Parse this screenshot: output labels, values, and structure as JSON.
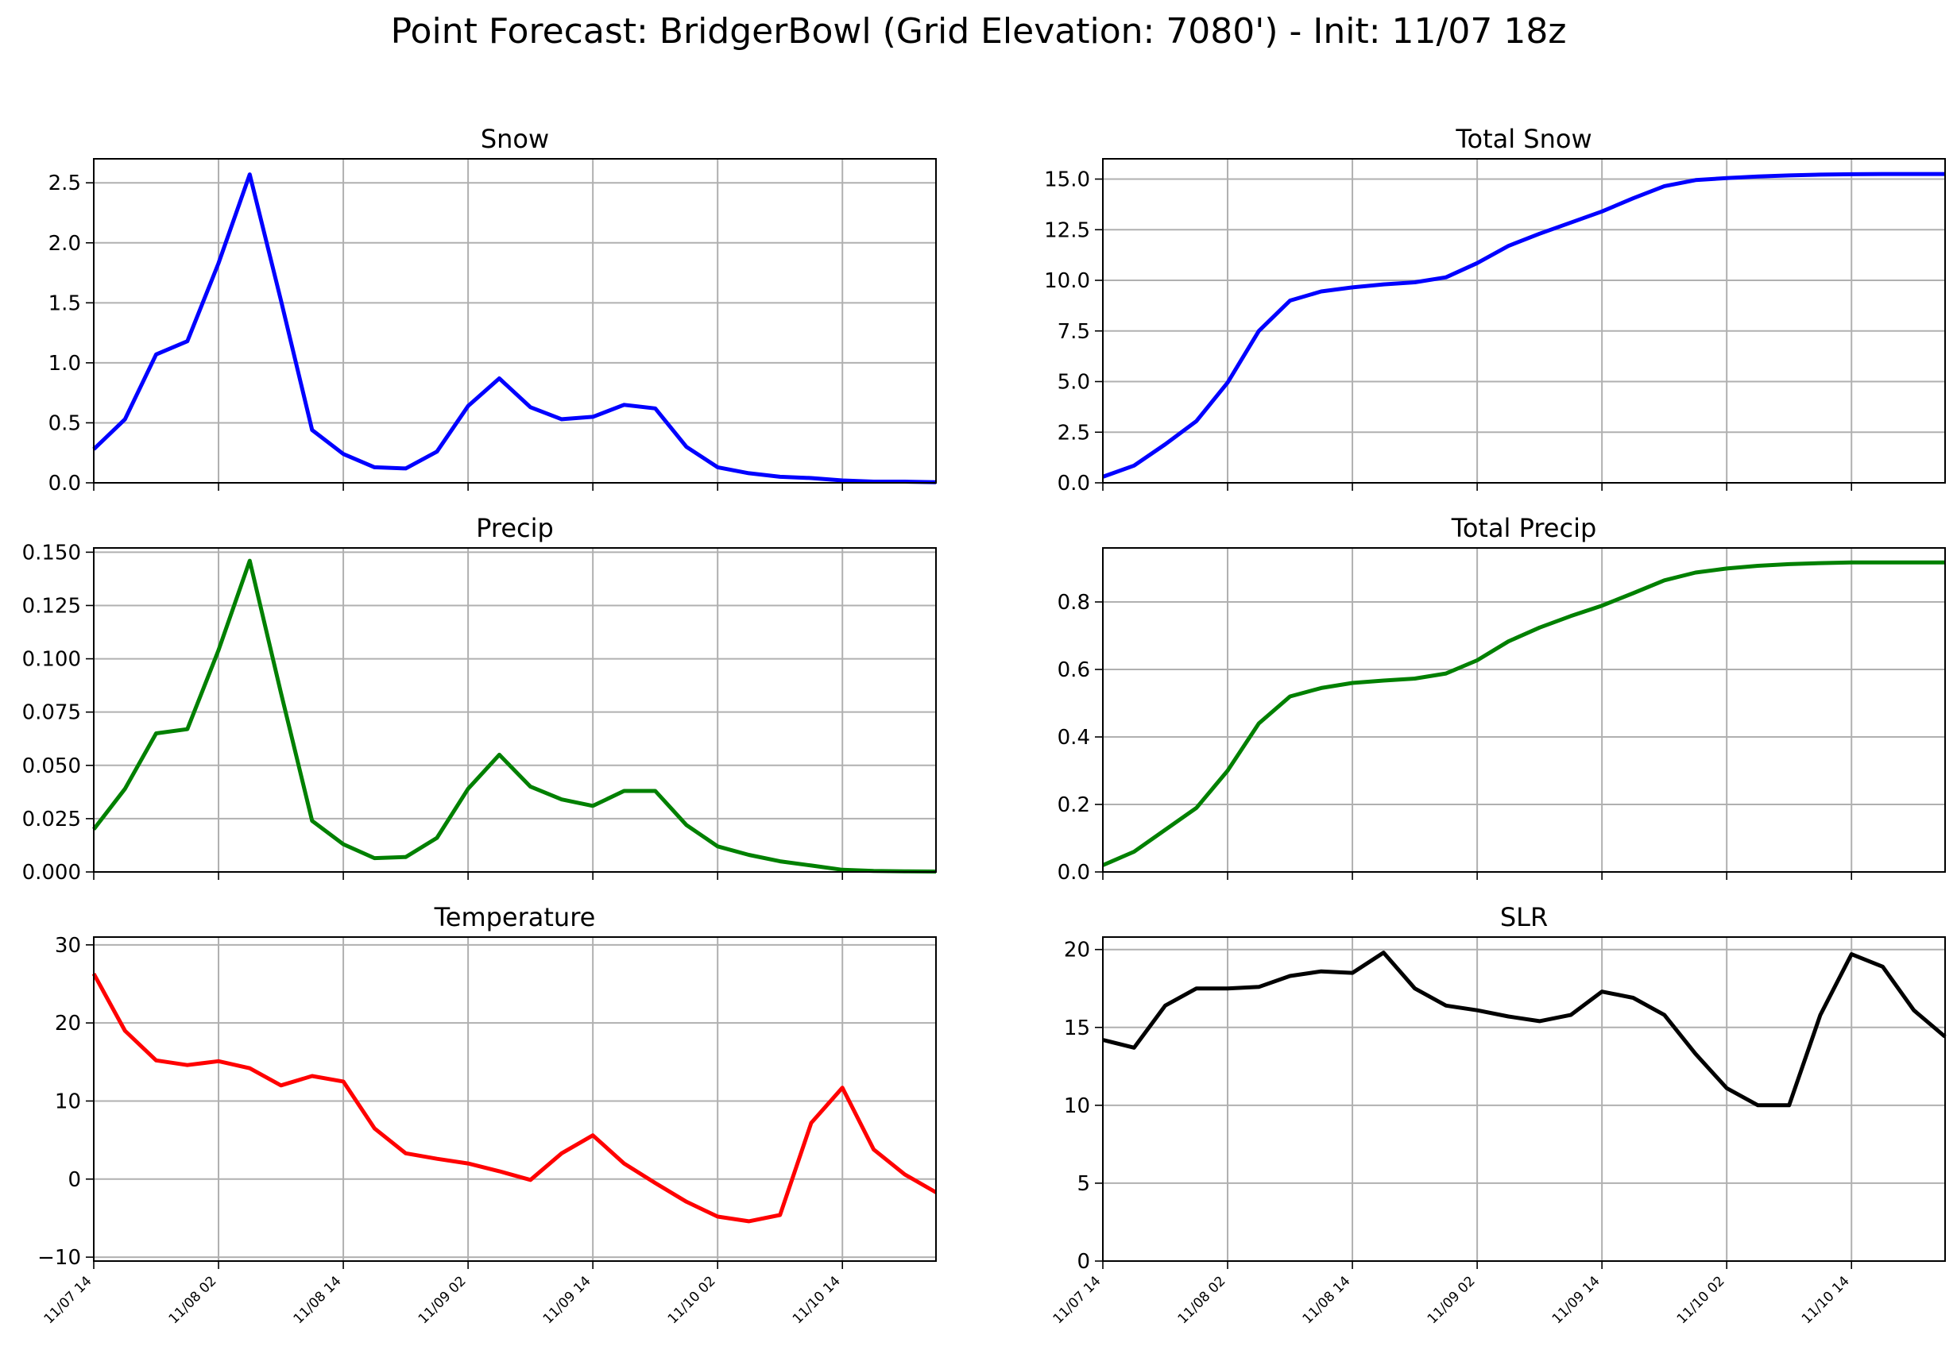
{
  "suptitle": "Point Forecast: BridgerBowl (Grid Elevation: 7080') - Init: 11/07 18z",
  "x_ticks": [
    "11/07 14",
    "11/08 02",
    "11/08 14",
    "11/09 02",
    "11/09 14",
    "11/10 02",
    "11/10 14"
  ],
  "chart_data": [
    {
      "type": "line",
      "title": "Snow",
      "color": "#0000ff",
      "ylim": [
        0,
        2.7
      ],
      "yticks": [
        0.0,
        0.5,
        1.0,
        1.5,
        2.0,
        2.5
      ],
      "ytick_labels": [
        "0.0",
        "0.5",
        "1.0",
        "1.5",
        "2.0",
        "2.5"
      ],
      "grid": true,
      "x_tick_labels_visible": false,
      "values": [
        0.28,
        0.53,
        1.07,
        1.18,
        1.83,
        2.57,
        1.52,
        0.44,
        0.24,
        0.13,
        0.12,
        0.26,
        0.64,
        0.87,
        0.63,
        0.53,
        0.55,
        0.65,
        0.62,
        0.3,
        0.13,
        0.08,
        0.05,
        0.04,
        0.02,
        0.01,
        0.01,
        0.005
      ]
    },
    {
      "type": "line",
      "title": "Total Snow",
      "color": "#0000ff",
      "ylim": [
        0,
        16
      ],
      "yticks": [
        0.0,
        2.5,
        5.0,
        7.5,
        10.0,
        12.5,
        15.0
      ],
      "ytick_labels": [
        "0.0",
        "2.5",
        "5.0",
        "7.5",
        "10.0",
        "12.5",
        "15.0"
      ],
      "grid": true,
      "x_tick_labels_visible": false,
      "values": [
        0.3,
        0.85,
        1.9,
        3.05,
        4.95,
        7.5,
        9.0,
        9.45,
        9.65,
        9.8,
        9.9,
        10.15,
        10.85,
        11.7,
        12.3,
        12.85,
        13.4,
        14.05,
        14.65,
        14.95,
        15.05,
        15.13,
        15.18,
        15.22,
        15.24,
        15.25,
        15.25,
        15.25
      ]
    },
    {
      "type": "line",
      "title": "Precip",
      "color": "#008000",
      "ylim": [
        0,
        0.152
      ],
      "yticks": [
        0.0,
        0.025,
        0.05,
        0.075,
        0.1,
        0.125,
        0.15
      ],
      "ytick_labels": [
        "0.000",
        "0.025",
        "0.050",
        "0.075",
        "0.100",
        "0.125",
        "0.150"
      ],
      "grid": true,
      "x_tick_labels_visible": false,
      "values": [
        0.02,
        0.039,
        0.065,
        0.067,
        0.104,
        0.146,
        0.084,
        0.024,
        0.013,
        0.0065,
        0.007,
        0.016,
        0.039,
        0.055,
        0.04,
        0.034,
        0.031,
        0.038,
        0.038,
        0.022,
        0.012,
        0.008,
        0.005,
        0.003,
        0.001,
        0.0005,
        0.0003,
        0.0002
      ]
    },
    {
      "type": "line",
      "title": "Total Precip",
      "color": "#008000",
      "ylim": [
        0,
        0.96
      ],
      "yticks": [
        0.0,
        0.2,
        0.4,
        0.6,
        0.8
      ],
      "ytick_labels": [
        "0.0",
        "0.2",
        "0.4",
        "0.6",
        "0.8"
      ],
      "grid": true,
      "x_tick_labels_visible": false,
      "values": [
        0.02,
        0.06,
        0.125,
        0.19,
        0.3,
        0.44,
        0.52,
        0.545,
        0.56,
        0.567,
        0.573,
        0.588,
        0.627,
        0.683,
        0.724,
        0.758,
        0.789,
        0.826,
        0.864,
        0.887,
        0.899,
        0.907,
        0.912,
        0.915,
        0.917,
        0.917,
        0.917,
        0.917
      ]
    },
    {
      "type": "line",
      "title": "Temperature",
      "color": "#ff0000",
      "ylim": [
        -10.5,
        31
      ],
      "yticks": [
        -10,
        0,
        10,
        20,
        30
      ],
      "ytick_labels": [
        "−10",
        "0",
        "10",
        "20",
        "30"
      ],
      "grid": true,
      "x_tick_labels_visible": true,
      "values": [
        26.3,
        19.0,
        15.2,
        14.6,
        15.1,
        14.2,
        12.0,
        13.2,
        12.5,
        6.5,
        3.3,
        2.6,
        2.0,
        1.0,
        -0.1,
        3.3,
        5.6,
        2.0,
        -0.5,
        -2.9,
        -4.8,
        -5.4,
        -4.6,
        7.2,
        11.7,
        3.8,
        0.6,
        -1.7
      ]
    },
    {
      "type": "line",
      "title": "SLR",
      "color": "#000000",
      "ylim": [
        0,
        20.8
      ],
      "yticks": [
        0,
        5,
        10,
        15,
        20
      ],
      "ytick_labels": [
        "0",
        "5",
        "10",
        "15",
        "20"
      ],
      "grid": true,
      "x_tick_labels_visible": true,
      "values": [
        14.2,
        13.7,
        16.4,
        17.5,
        17.5,
        17.6,
        18.3,
        18.6,
        18.5,
        19.8,
        17.5,
        16.4,
        16.1,
        15.7,
        15.4,
        15.8,
        17.3,
        16.9,
        15.8,
        13.3,
        11.1,
        10.0,
        10.0,
        15.8,
        19.7,
        18.9,
        16.1,
        14.4
      ]
    }
  ]
}
